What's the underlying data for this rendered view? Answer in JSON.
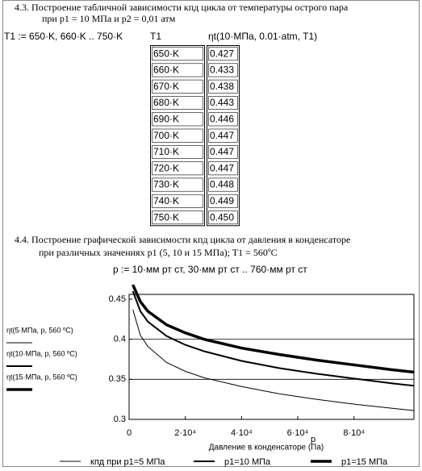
{
  "section_43": {
    "heading": "4.3. Построение табличной зависимости кпд цикла от температуры острого пара",
    "subheading": "при p1 = 10 МПа и p2 = 0,01 атм",
    "definition": "T1 := 650·K, 660·K .. 750·K",
    "table": {
      "headers": [
        "T1",
        "ηt(10·МПа, 0.01·atm, T1)"
      ],
      "rows": [
        [
          "650·K",
          "0.427"
        ],
        [
          "660·K",
          "0.433"
        ],
        [
          "670·K",
          "0.438"
        ],
        [
          "680·K",
          "0.443"
        ],
        [
          "690·K",
          "0.446"
        ],
        [
          "700·K",
          "0.447"
        ],
        [
          "710·K",
          "0.447"
        ],
        [
          "720·K",
          "0.447"
        ],
        [
          "730·K",
          "0.448"
        ],
        [
          "740·K",
          "0.449"
        ],
        [
          "750·K",
          "0.450"
        ]
      ]
    }
  },
  "section_44": {
    "heading": "4.4. Построение графической зависимости кпд цикла от давления в конденсаторе",
    "subheading": "при различных значениях p1 (5, 10 и 15 МПа); T1 = 560ºC",
    "definition": "p := 10·мм рт ст, 30·мм рт ст .. 760·мм рт ст"
  },
  "chart_data": {
    "type": "line",
    "x_label": "p",
    "x_title": "Давление в конденсаторе (Па)",
    "axis_labels": [
      "ηt(5·МПа, p, 560 ºC)",
      "ηt(10·МПа, p, 560 ºC)",
      "ηt(15·МПа, p, 560 ºC)"
    ],
    "x": [
      1333,
      4000,
      6666,
      13332,
      19998,
      26664,
      39997,
      53329,
      66661,
      79993,
      93326,
      101325
    ],
    "series": [
      {
        "name": "кпд при p1=5 МПа",
        "color": "#000000",
        "width": 1,
        "values": [
          0.437,
          0.405,
          0.391,
          0.371,
          0.36,
          0.352,
          0.341,
          0.332,
          0.325,
          0.319,
          0.314,
          0.311
        ]
      },
      {
        "name": "p1=10 МПа",
        "color": "#000000",
        "width": 2,
        "values": [
          0.46,
          0.435,
          0.422,
          0.404,
          0.393,
          0.385,
          0.373,
          0.364,
          0.357,
          0.351,
          0.345,
          0.342
        ]
      },
      {
        "name": "p1=15 МПа",
        "color": "#000000",
        "width": 3.5,
        "values": [
          0.468,
          0.447,
          0.435,
          0.418,
          0.408,
          0.4,
          0.389,
          0.381,
          0.374,
          0.368,
          0.362,
          0.359
        ]
      }
    ],
    "xlim": [
      0,
      101325
    ],
    "ylim": [
      0.3,
      0.456
    ],
    "xticks": [
      0,
      {
        "value": 20000,
        "label": "2·10⁴"
      },
      {
        "value": 40000,
        "label": "4·10⁴"
      },
      {
        "value": 60000,
        "label": "6·10⁴"
      },
      {
        "value": 80000,
        "label": "8·10⁴"
      }
    ],
    "yticks": [
      0.3,
      0.35,
      0.4,
      0.45
    ],
    "grid_lines": [
      0.35,
      0.4
    ]
  }
}
